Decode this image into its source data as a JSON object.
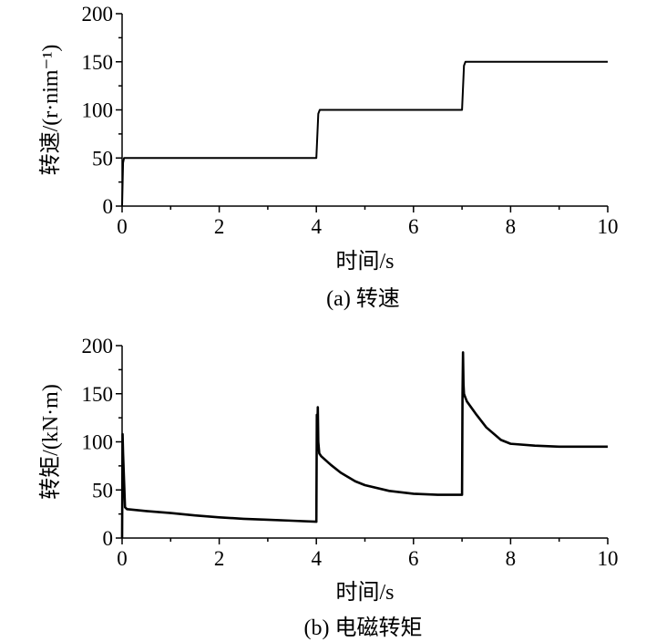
{
  "chart_data": [
    {
      "type": "line",
      "caption": "(a) 转速",
      "xlabel": "时间/s",
      "ylabel": "转速/(r·nim⁻¹)",
      "xlim": [
        0,
        10
      ],
      "ylim": [
        0,
        200
      ],
      "xticks": [
        0,
        2,
        4,
        6,
        8,
        10
      ],
      "yticks": [
        0,
        50,
        100,
        150,
        200
      ],
      "grid": false,
      "line_color": "#000000",
      "series": [
        {
          "x": [
            0,
            0.02,
            0.04,
            0.06,
            4.0,
            4.04,
            4.07,
            7.0,
            7.04,
            7.07,
            10.0
          ],
          "y": [
            0,
            45,
            50,
            50,
            50,
            96,
            100,
            100,
            146,
            150,
            150
          ]
        }
      ]
    },
    {
      "type": "line",
      "caption": "(b) 电磁转矩",
      "xlabel": "时间/s",
      "ylabel": "转矩/(kN·m)",
      "xlim": [
        0,
        10
      ],
      "ylim": [
        0,
        200
      ],
      "xticks": [
        0,
        2,
        4,
        6,
        8,
        10
      ],
      "yticks": [
        0,
        50,
        100,
        150,
        200
      ],
      "grid": false,
      "line_color": "#000000",
      "series": [
        {
          "x": [
            0,
            0.01,
            0.02,
            0.04,
            0.06,
            0.1,
            0.5,
            1.0,
            1.5,
            2.0,
            2.5,
            3.0,
            3.5,
            3.99,
            4.0,
            4.01,
            4.02,
            4.03,
            4.04,
            4.06,
            4.1,
            4.3,
            4.5,
            4.8,
            5.0,
            5.5,
            6.0,
            6.5,
            6.99,
            7.0,
            7.01,
            7.02,
            7.03,
            7.04,
            7.06,
            7.1,
            7.3,
            7.5,
            7.8,
            8.0,
            8.5,
            9.0,
            9.5,
            10.0
          ],
          "y": [
            0,
            108,
            88,
            60,
            32,
            30,
            28,
            26,
            23.5,
            21.5,
            20,
            19,
            18,
            17,
            17,
            128,
            112,
            136,
            100,
            88,
            85,
            76,
            68,
            59,
            55,
            49,
            46,
            45,
            45,
            45,
            150,
            193,
            160,
            150,
            147,
            142,
            128,
            115,
            102,
            98,
            96,
            95,
            95,
            95
          ]
        }
      ]
    }
  ]
}
